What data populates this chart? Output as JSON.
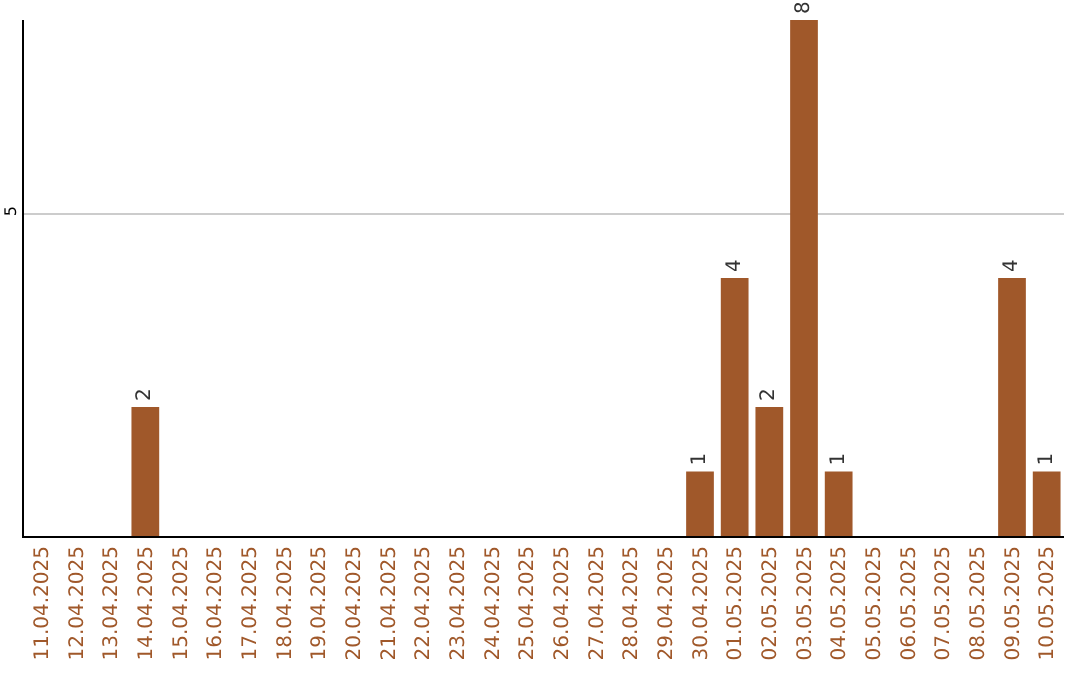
{
  "chart_data": {
    "type": "bar",
    "categories": [
      "11.04.2025",
      "12.04.2025",
      "13.04.2025",
      "14.04.2025",
      "15.04.2025",
      "16.04.2025",
      "17.04.2025",
      "18.04.2025",
      "19.04.2025",
      "20.04.2025",
      "21.04.2025",
      "22.04.2025",
      "23.04.2025",
      "24.04.2025",
      "25.04.2025",
      "26.04.2025",
      "27.04.2025",
      "28.04.2025",
      "29.04.2025",
      "30.04.2025",
      "01.05.2025",
      "02.05.2025",
      "03.05.2025",
      "04.05.2025",
      "05.05.2025",
      "06.05.2025",
      "07.05.2025",
      "08.05.2025",
      "09.05.2025",
      "10.05.2025"
    ],
    "values": [
      0,
      0,
      0,
      2,
      0,
      0,
      0,
      0,
      0,
      0,
      0,
      0,
      0,
      0,
      0,
      0,
      0,
      0,
      0,
      1,
      4,
      2,
      8,
      1,
      0,
      0,
      0,
      0,
      4,
      1
    ],
    "value_labels": [
      null,
      null,
      null,
      "2",
      null,
      null,
      null,
      null,
      null,
      null,
      null,
      null,
      null,
      null,
      null,
      null,
      null,
      null,
      null,
      "1",
      "4",
      "2",
      "8",
      "1",
      null,
      null,
      null,
      null,
      "4",
      "1"
    ],
    "color": "#a0582a",
    "ylim": [
      0,
      8
    ],
    "yticks": [
      5
    ],
    "grid": "y",
    "legend": false
  }
}
